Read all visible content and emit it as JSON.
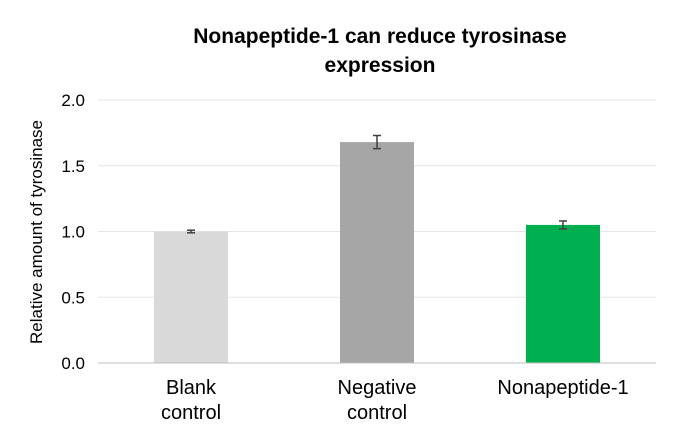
{
  "chart_data": {
    "type": "bar",
    "title_lines": [
      "Nonapeptide-1 can reduce tyrosinase",
      "expression"
    ],
    "ylabel": "Relative amount of tyrosinase",
    "xlabel": "",
    "ylim": [
      0,
      2.0
    ],
    "yticks": [
      "0.0",
      "0.5",
      "1.0",
      "1.5",
      "2.0"
    ],
    "ytick_values": [
      0,
      0.5,
      1.0,
      1.5,
      2.0
    ],
    "grid": true,
    "categories": [
      {
        "lines": [
          "Blank",
          "control"
        ]
      },
      {
        "lines": [
          "Negative",
          "control"
        ]
      },
      {
        "lines": [
          "Nonapeptide-1"
        ]
      }
    ],
    "values": [
      1.0,
      1.68,
      1.05
    ],
    "errors": [
      0.01,
      0.05,
      0.03
    ],
    "colors": [
      "#d9d9d9",
      "#a6a6a6",
      "#00b050"
    ]
  }
}
